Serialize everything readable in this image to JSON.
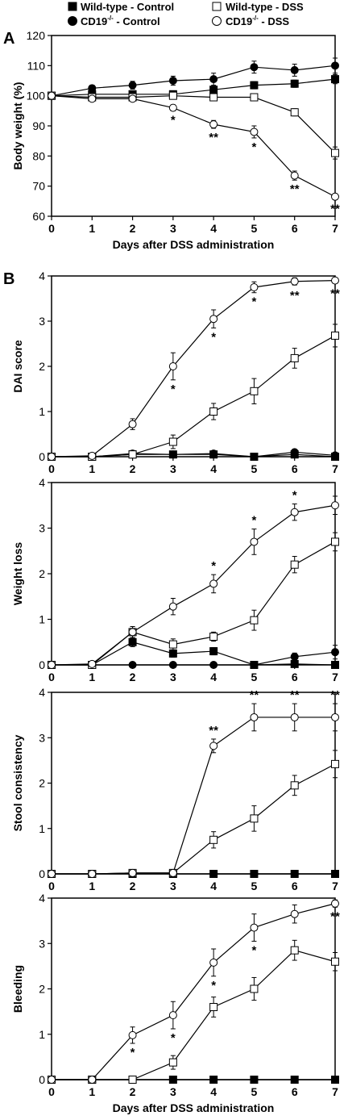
{
  "panels": {
    "a": "A",
    "b": "B"
  },
  "legend": {
    "wt_control": "Wild-type - Control",
    "cd19_control_prefix": "CD19",
    "cd19_control_sup": "-/-",
    "cd19_control_suffix": " - Control",
    "wt_dss": "Wild-type - DSS",
    "cd19_dss_prefix": "CD19",
    "cd19_dss_sup": "-/-",
    "cd19_dss_suffix": " - DSS"
  },
  "series_style": {
    "Wild-type - Control": {
      "marker": "square",
      "fill": "#000000"
    },
    "CD19-/- - Control": {
      "marker": "circle",
      "fill": "#000000"
    },
    "Wild-type - DSS": {
      "marker": "square",
      "fill": "#ffffff"
    },
    "CD19-/- - DSS": {
      "marker": "circle",
      "fill": "#ffffff"
    }
  },
  "chart_data": [
    {
      "type": "line",
      "xlabel": "Days after DSS administration",
      "ylabel": "Body weight (%)",
      "x": [
        0,
        1,
        2,
        3,
        4,
        5,
        6,
        7
      ],
      "xlim": [
        0,
        7
      ],
      "ylim": [
        60,
        120
      ],
      "yticks": [
        60,
        70,
        80,
        90,
        100,
        110,
        120
      ],
      "series": [
        {
          "name": "Wild-type - Control",
          "values": [
            100,
            100.5,
            100.5,
            100.5,
            102,
            103.5,
            104,
            105.5
          ],
          "err": [
            0.5,
            0.8,
            1,
            1,
            1.2,
            1.2,
            1.2,
            1.5
          ]
        },
        {
          "name": "CD19-/- - Control",
          "values": [
            100,
            102.5,
            103.5,
            105,
            105.5,
            109.5,
            108.5,
            110
          ],
          "err": [
            0.5,
            1,
            1.3,
            1.5,
            2,
            2,
            2,
            2.5
          ]
        },
        {
          "name": "Wild-type - DSS",
          "values": [
            100,
            99.5,
            99.5,
            100,
            99.5,
            99.5,
            94.5,
            81
          ],
          "err": [
            0.5,
            0.5,
            0.5,
            0.5,
            0.5,
            1,
            1.2,
            2
          ]
        },
        {
          "name": "CD19-/- - DSS",
          "values": [
            100,
            99,
            99,
            96,
            90.5,
            88,
            73.5,
            66.5
          ],
          "err": [
            0.5,
            0.5,
            0.5,
            1,
            1.3,
            2,
            1.5,
            1
          ]
        }
      ],
      "annotations": [
        {
          "x": 3,
          "text": "*"
        },
        {
          "x": 4,
          "text": "**"
        },
        {
          "x": 5,
          "text": "*"
        },
        {
          "x": 6,
          "text": "**"
        },
        {
          "x": 7,
          "text": "**"
        }
      ]
    },
    {
      "type": "line",
      "xlabel": "",
      "ylabel": "DAI score",
      "x": [
        0,
        1,
        2,
        3,
        4,
        5,
        6,
        7
      ],
      "xlim": [
        0,
        7
      ],
      "ylim": [
        0,
        4
      ],
      "yticks": [
        0,
        1,
        2,
        3,
        4
      ],
      "series": [
        {
          "name": "Wild-type - Control",
          "values": [
            0,
            0,
            0.05,
            0.05,
            0.05,
            0,
            0.05,
            0
          ],
          "err": [
            0,
            0.03,
            0.05,
            0.05,
            0.05,
            0.03,
            0.05,
            0.03
          ]
        },
        {
          "name": "CD19-/- - Control",
          "values": [
            0,
            0,
            0.07,
            0.05,
            0.07,
            0,
            0.1,
            0.03
          ],
          "err": [
            0,
            0.03,
            0.05,
            0.05,
            0.05,
            0.03,
            0.05,
            0.03
          ]
        },
        {
          "name": "Wild-type - DSS",
          "values": [
            0,
            0,
            0.05,
            0.33,
            1.0,
            1.45,
            2.18,
            2.68
          ],
          "err": [
            0,
            0.03,
            0.05,
            0.15,
            0.18,
            0.28,
            0.22,
            0.25
          ]
        },
        {
          "name": "CD19-/- - DSS",
          "values": [
            0,
            0.02,
            0.72,
            2.0,
            3.05,
            3.75,
            3.88,
            3.9
          ],
          "err": [
            0,
            0.03,
            0.12,
            0.3,
            0.2,
            0.12,
            0.08,
            0.05
          ]
        }
      ],
      "annotations": [
        {
          "x": 3,
          "text": "*"
        },
        {
          "x": 4,
          "text": "*"
        },
        {
          "x": 5,
          "text": "*"
        },
        {
          "x": 6,
          "text": "**"
        },
        {
          "x": 7,
          "text": "**"
        }
      ]
    },
    {
      "type": "line",
      "xlabel": "",
      "ylabel": "Weight loss",
      "x": [
        0,
        1,
        2,
        3,
        4,
        5,
        6,
        7
      ],
      "xlim": [
        0,
        7
      ],
      "ylim": [
        0,
        4
      ],
      "yticks": [
        0,
        1,
        2,
        3,
        4
      ],
      "series": [
        {
          "name": "Wild-type - Control",
          "values": [
            0,
            0,
            0.5,
            0.25,
            0.3,
            0,
            0.02,
            0
          ],
          "err": [
            0,
            0.03,
            0.1,
            0.08,
            0.08,
            0.03,
            0.05,
            0.03
          ]
        },
        {
          "name": "CD19-/- - Control",
          "values": [
            0,
            0,
            0,
            0,
            0,
            0,
            0.18,
            0.28
          ],
          "err": [
            0,
            0.03,
            0.03,
            0.03,
            0.03,
            0.03,
            0.08,
            0.15
          ]
        },
        {
          "name": "Wild-type - DSS",
          "values": [
            0,
            0,
            0.72,
            0.45,
            0.62,
            0.98,
            2.2,
            2.7
          ],
          "err": [
            0,
            0.03,
            0.12,
            0.12,
            0.1,
            0.22,
            0.18,
            0.2
          ]
        },
        {
          "name": "CD19-/- - DSS",
          "values": [
            0,
            0.02,
            0.72,
            1.28,
            1.78,
            2.7,
            3.35,
            3.5
          ],
          "err": [
            0,
            0.03,
            0.12,
            0.18,
            0.2,
            0.28,
            0.18,
            0.2
          ]
        }
      ],
      "annotations": [
        {
          "x": 4,
          "text": "*"
        },
        {
          "x": 5,
          "text": "*"
        },
        {
          "x": 6,
          "text": "*"
        }
      ]
    },
    {
      "type": "line",
      "xlabel": "",
      "ylabel": "Stool consistency",
      "x": [
        0,
        1,
        2,
        3,
        4,
        5,
        6,
        7
      ],
      "xlim": [
        0,
        7
      ],
      "ylim": [
        0,
        4
      ],
      "yticks": [
        0,
        1,
        2,
        3,
        4
      ],
      "series": [
        {
          "name": "Wild-type - Control",
          "values": [
            0,
            0,
            0,
            0,
            0,
            0,
            0,
            0
          ],
          "err": [
            0,
            0,
            0,
            0,
            0,
            0,
            0,
            0
          ]
        },
        {
          "name": "CD19-/- - Control",
          "values": [
            0,
            0,
            0,
            0,
            0,
            0,
            0,
            0
          ],
          "err": [
            0,
            0,
            0,
            0,
            0,
            0,
            0,
            0
          ]
        },
        {
          "name": "Wild-type - DSS",
          "values": [
            0,
            0,
            0.02,
            0.02,
            0.75,
            1.22,
            1.95,
            2.42
          ],
          "err": [
            0,
            0.03,
            0.03,
            0.05,
            0.18,
            0.28,
            0.22,
            0.3
          ]
        },
        {
          "name": "CD19-/- - DSS",
          "values": [
            0,
            0,
            0.02,
            0.02,
            2.82,
            3.45,
            3.45,
            3.45
          ],
          "err": [
            0,
            0.03,
            0.03,
            0.05,
            0.15,
            0.3,
            0.3,
            0.3
          ]
        }
      ],
      "annotations": [
        {
          "x": 4,
          "text": "**"
        },
        {
          "x": 5,
          "text": "**"
        },
        {
          "x": 6,
          "text": "**"
        },
        {
          "x": 7,
          "text": "**"
        }
      ]
    },
    {
      "type": "line",
      "xlabel": "Days after DSS administration",
      "ylabel": "Bleeding",
      "x": [
        0,
        1,
        2,
        3,
        4,
        5,
        6,
        7
      ],
      "xlim": [
        0,
        7
      ],
      "ylim": [
        0,
        4
      ],
      "yticks": [
        0,
        1,
        2,
        3,
        4
      ],
      "series": [
        {
          "name": "Wild-type - Control",
          "values": [
            0,
            0,
            0,
            0,
            0,
            0,
            0,
            0
          ],
          "err": [
            0,
            0,
            0,
            0,
            0,
            0,
            0,
            0
          ]
        },
        {
          "name": "CD19-/- - Control",
          "values": [
            0,
            0,
            0,
            0,
            0,
            0,
            0,
            0
          ],
          "err": [
            0,
            0,
            0,
            0,
            0,
            0,
            0,
            0
          ]
        },
        {
          "name": "Wild-type - DSS",
          "values": [
            0,
            0,
            0,
            0.38,
            1.6,
            2.0,
            2.85,
            2.6
          ],
          "err": [
            0,
            0.03,
            0.03,
            0.15,
            0.22,
            0.25,
            0.22,
            0.2
          ]
        },
        {
          "name": "CD19-/- - DSS",
          "values": [
            0,
            0,
            0.98,
            1.42,
            2.58,
            3.35,
            3.65,
            3.88
          ],
          "err": [
            0,
            0.03,
            0.18,
            0.3,
            0.3,
            0.3,
            0.2,
            0.08
          ]
        }
      ],
      "annotations": [
        {
          "x": 2,
          "text": "*"
        },
        {
          "x": 3,
          "text": "*"
        },
        {
          "x": 4,
          "text": "*"
        },
        {
          "x": 5,
          "text": "*"
        },
        {
          "x": 7,
          "text": "**"
        }
      ]
    }
  ]
}
